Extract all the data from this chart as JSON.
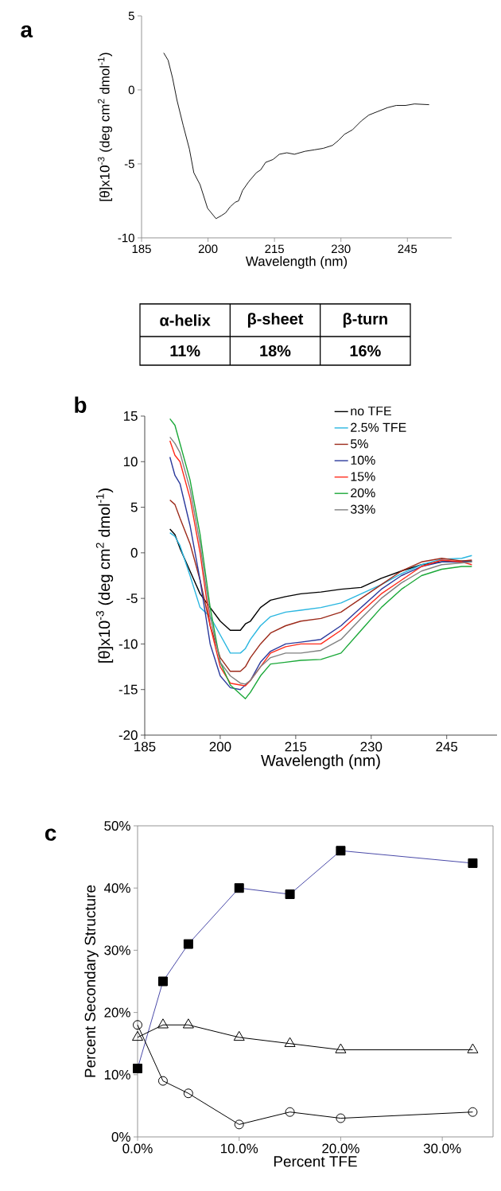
{
  "chart_data": [
    {
      "type": "line",
      "title": "a",
      "xlabel": "Wavelength (nm)",
      "ylabel": "[θ]x10$^{-3}$ (deg cm$^{2}$ dmol$^{-1}$)",
      "color": "#000000",
      "x": [
        190,
        191,
        192,
        193,
        194.4,
        195.8,
        196.8,
        198.2,
        199.9,
        201.8,
        203,
        204,
        205,
        206.1,
        206.9,
        207.8,
        209.2,
        210.9,
        211.9,
        213,
        214.7,
        216.1,
        217.8,
        219.5,
        221.9,
        224,
        226,
        228.1,
        229.5,
        230.8,
        232.6,
        234.6,
        236.3,
        238.4,
        240.5,
        242.5,
        244.6,
        246.6,
        249.9
      ],
      "values": [
        2.5,
        2.0,
        0.8,
        -0.7,
        -2.4,
        -4.0,
        -5.6,
        -6.4,
        -8.0,
        -8.7,
        -8.5,
        -8.3,
        -7.9,
        -7.6,
        -7.5,
        -6.8,
        -6.2,
        -5.6,
        -5.4,
        -4.9,
        -4.7,
        -4.35,
        -4.25,
        -4.35,
        -4.15,
        -4.05,
        -3.95,
        -3.75,
        -3.4,
        -3.0,
        -2.7,
        -2.1,
        -1.7,
        -1.45,
        -1.2,
        -1.05,
        -1.05,
        -0.95,
        -1.0
      ],
      "xlim": [
        185,
        255
      ],
      "ylim": [
        -10,
        5
      ],
      "xticks": [
        185,
        200,
        215,
        230,
        245
      ],
      "yticks": [
        -10,
        -5,
        0,
        5
      ]
    },
    {
      "type": "other",
      "categories": [
        "α-helix",
        "β-sheet",
        "β-turn"
      ],
      "values": [
        11,
        18,
        16
      ],
      "value_labels": [
        "11%",
        "18%",
        "16%"
      ]
    },
    {
      "type": "line",
      "title": "b",
      "xlabel": "Wavelength (nm)",
      "ylabel": "[θ]x10$^{-3}$ (deg cm$^{2}$ dmol$^{-1}$)",
      "legend": "top right",
      "x": [
        190,
        191,
        192,
        194,
        196,
        198,
        200,
        202,
        204,
        205,
        206,
        208,
        210,
        213,
        216,
        220,
        224,
        228,
        232,
        236,
        240,
        244,
        248,
        250
      ],
      "series": [
        {
          "name": "no TFE",
          "color": "#000000",
          "values": [
            2.6,
            2.0,
            0.5,
            -2,
            -4.5,
            -6,
            -7.5,
            -8.5,
            -8.5,
            -7.8,
            -7.5,
            -6,
            -5.2,
            -4.8,
            -4.5,
            -4.3,
            -4,
            -3.8,
            -2.8,
            -2,
            -1.3,
            -1,
            -0.9,
            -0.9
          ]
        },
        {
          "name": "2.5% TFE",
          "color": "#29b6e0",
          "values": [
            2.2,
            1.8,
            0.8,
            -2.5,
            -6,
            -7,
            -9,
            -11,
            -11,
            -10.5,
            -9.5,
            -8,
            -7,
            -6.5,
            -6.3,
            -6,
            -5.5,
            -4.5,
            -3.5,
            -2.3,
            -1.3,
            -0.7,
            -0.6,
            -0.3
          ]
        },
        {
          "name": "5%",
          "color": "#9c2a1a",
          "values": [
            5.8,
            5.3,
            3.8,
            1.0,
            -3,
            -8,
            -11.5,
            -13,
            -13,
            -12.5,
            -11.5,
            -10,
            -8.8,
            -8,
            -7.5,
            -7.2,
            -6.5,
            -5,
            -3.5,
            -2,
            -1,
            -0.6,
            -0.9,
            -0.8
          ]
        },
        {
          "name": "10%",
          "color": "#2b3a9c",
          "values": [
            10.5,
            8.5,
            7.6,
            3,
            -3,
            -10,
            -13.5,
            -14.8,
            -15,
            -14.5,
            -14,
            -12,
            -10.8,
            -10,
            -9.8,
            -9.5,
            -8,
            -6,
            -4,
            -2.5,
            -1.5,
            -1,
            -1,
            -1
          ]
        },
        {
          "name": "15%",
          "color": "#ff2a1a",
          "values": [
            12.3,
            10.7,
            10,
            6,
            0,
            -8,
            -12.5,
            -14.3,
            -14.5,
            -14.6,
            -14,
            -12.5,
            -11,
            -10.3,
            -10,
            -10,
            -8.5,
            -6.5,
            -4.5,
            -3,
            -1.5,
            -0.8,
            -1,
            -1.3
          ]
        },
        {
          "name": "20%",
          "color": "#1aa838",
          "values": [
            14.7,
            14,
            12,
            8,
            2,
            -6,
            -12,
            -14.5,
            -15.5,
            -16,
            -15.3,
            -13.5,
            -12.2,
            -12,
            -11.8,
            -11.7,
            -11,
            -8.5,
            -6,
            -4,
            -2.5,
            -1.8,
            -1.5,
            -1.5
          ]
        },
        {
          "name": "33%",
          "color": "#808080",
          "values": [
            12.7,
            12,
            11,
            7,
            1,
            -7,
            -12,
            -13.5,
            -14.3,
            -14.4,
            -14,
            -12.5,
            -11.5,
            -11,
            -11,
            -10.7,
            -9.5,
            -7.2,
            -5,
            -3.3,
            -2,
            -1.3,
            -1.1,
            -1
          ]
        }
      ],
      "xlim": [
        185,
        255
      ],
      "ylim": [
        -20,
        15
      ],
      "xticks": [
        185,
        200,
        215,
        230,
        245
      ],
      "yticks": [
        -20,
        -15,
        -10,
        -5,
        0,
        5,
        10,
        15
      ]
    },
    {
      "type": "line",
      "title": "c",
      "xlabel": "Percent TFE",
      "ylabel": "Percent Secondary Structure",
      "x": [
        0,
        2.5,
        5,
        10,
        15,
        20,
        33
      ],
      "series": [
        {
          "color": "#4a4aa8",
          "marker": "square",
          "values": [
            11,
            25,
            31,
            40,
            39,
            46,
            44
          ]
        },
        {
          "color": "#000000",
          "marker": "circle",
          "values": [
            18,
            9,
            7,
            2,
            4,
            3,
            4
          ]
        },
        {
          "color": "#000000",
          "marker": "triangle",
          "values": [
            16,
            18,
            18,
            16,
            15,
            14,
            14
          ]
        }
      ],
      "xlim": [
        0,
        35
      ],
      "ylim": [
        0,
        50
      ],
      "xticks": [
        {
          "value": 0,
          "label": "0.0%"
        },
        {
          "value": 10,
          "label": "10.0%"
        },
        {
          "value": 20,
          "label": "20.0%"
        },
        {
          "value": 30,
          "label": "30.0%"
        }
      ],
      "yticks": [
        {
          "value": 0,
          "label": "0%"
        },
        {
          "value": 10,
          "label": "10%"
        },
        {
          "value": 20,
          "label": "20%"
        },
        {
          "value": 30,
          "label": "30%"
        },
        {
          "value": 40,
          "label": "40%"
        },
        {
          "value": 50,
          "label": "50%"
        }
      ]
    }
  ]
}
